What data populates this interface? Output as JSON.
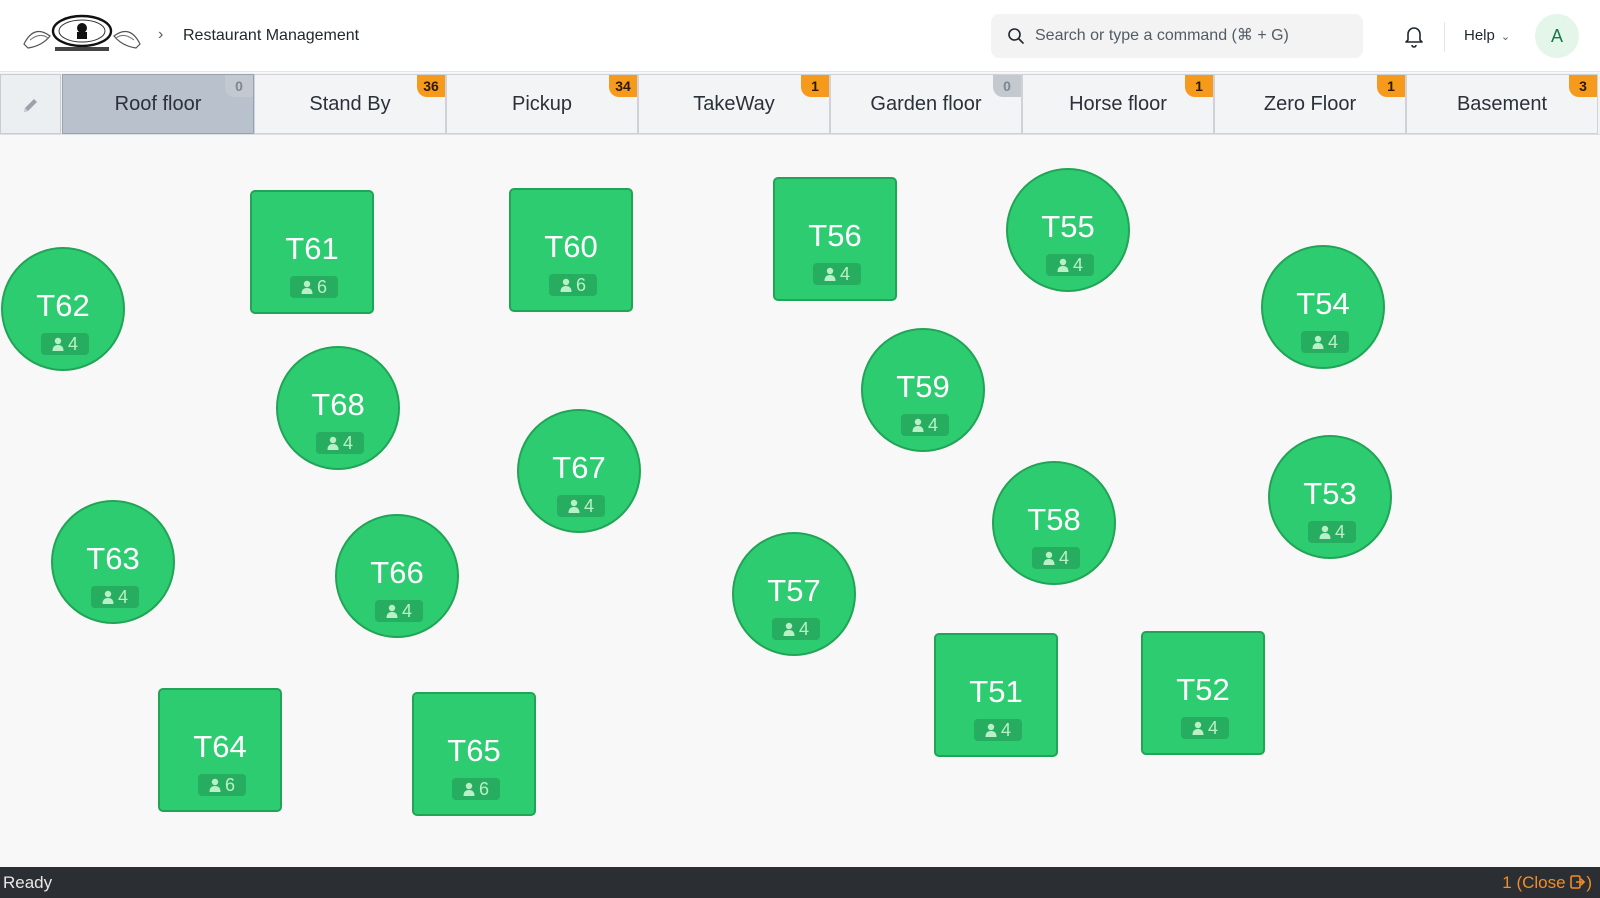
{
  "header": {
    "breadcrumb": "Restaurant Management",
    "search_placeholder": "Search or type a command (⌘ + G)",
    "help_label": "Help",
    "avatar_initial": "A"
  },
  "floors": [
    {
      "name": "Roof floor",
      "count": "0",
      "active": true
    },
    {
      "name": "Stand By",
      "count": "36"
    },
    {
      "name": "Pickup",
      "count": "34"
    },
    {
      "name": "TakeWay",
      "count": "1"
    },
    {
      "name": "Garden floor",
      "count": "0"
    },
    {
      "name": "Horse floor",
      "count": "1"
    },
    {
      "name": "Zero Floor",
      "count": "1"
    },
    {
      "name": "Basement",
      "count": "3"
    }
  ],
  "tables": {
    "t62": {
      "name": "T62",
      "seats": "4",
      "shape": "round"
    },
    "t61": {
      "name": "T61",
      "seats": "6",
      "shape": "square"
    },
    "t60": {
      "name": "T60",
      "seats": "6",
      "shape": "square"
    },
    "t56": {
      "name": "T56",
      "seats": "4",
      "shape": "square"
    },
    "t55": {
      "name": "T55",
      "seats": "4",
      "shape": "round"
    },
    "t54": {
      "name": "T54",
      "seats": "4",
      "shape": "round"
    },
    "t68": {
      "name": "T68",
      "seats": "4",
      "shape": "round"
    },
    "t59": {
      "name": "T59",
      "seats": "4",
      "shape": "round"
    },
    "t67": {
      "name": "T67",
      "seats": "4",
      "shape": "round"
    },
    "t53": {
      "name": "T53",
      "seats": "4",
      "shape": "round"
    },
    "t63": {
      "name": "T63",
      "seats": "4",
      "shape": "round"
    },
    "t66": {
      "name": "T66",
      "seats": "4",
      "shape": "round"
    },
    "t58": {
      "name": "T58",
      "seats": "4",
      "shape": "round"
    },
    "t57": {
      "name": "T57",
      "seats": "4",
      "shape": "round"
    },
    "t51": {
      "name": "T51",
      "seats": "4",
      "shape": "square"
    },
    "t52": {
      "name": "T52",
      "seats": "4",
      "shape": "square"
    },
    "t64": {
      "name": "T64",
      "seats": "6",
      "shape": "square"
    },
    "t65": {
      "name": "T65",
      "seats": "6",
      "shape": "square"
    }
  },
  "status": {
    "text": "Ready",
    "close_label": "1 (Close"
  },
  "colors": {
    "table_free": "#2ecc71",
    "badge_orange": "#f59a1c",
    "active_tab": "#b8c1cc"
  }
}
